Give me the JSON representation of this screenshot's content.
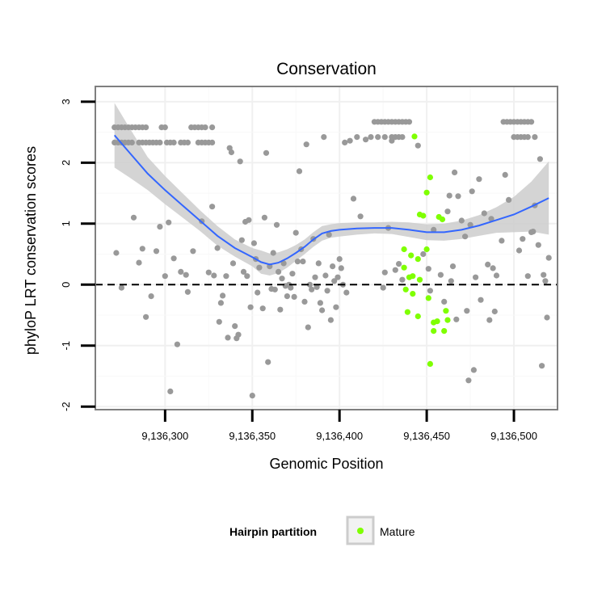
{
  "chart_data": {
    "type": "scatter",
    "title": "Conservation",
    "xlabel": "Genomic Position",
    "ylabel": "phyloP LRT conservation scores",
    "xlim": [
      9136260,
      9136525
    ],
    "ylim": [
      -2.05,
      3.25
    ],
    "x_ticks": [
      9136300,
      9136350,
      9136400,
      9136450,
      9136500
    ],
    "x_tick_labels": [
      "9,136,300",
      "9,136,350",
      "9,136,400",
      "9,136,450",
      "9,136,500"
    ],
    "y_ticks": [
      -2,
      -1,
      0,
      1,
      2,
      3
    ],
    "y_tick_labels": [
      "-2",
      "-1",
      "0",
      "1",
      "2",
      "3"
    ],
    "reference_line": {
      "y": 0,
      "style": "dashed"
    },
    "grid": true,
    "legend": {
      "title": "Hairpin partition",
      "position": "bottom",
      "entries": [
        {
          "label": "Mature",
          "color": "#7fff00"
        }
      ]
    },
    "colors": {
      "points_other": "#999999",
      "points_mature": "#7fff00",
      "smooth_line": "#3366ff",
      "confidence_band": "#cccccc",
      "panel_border": "#7f7f7f",
      "grid": "#f0f0f0"
    },
    "series": [
      {
        "name": "",
        "color": "#999999",
        "points": [
          [
            9136271,
            2.58
          ],
          [
            9136273,
            2.58
          ],
          [
            9136275,
            2.58
          ],
          [
            9136277,
            2.58
          ],
          [
            9136279,
            2.58
          ],
          [
            9136281,
            2.58
          ],
          [
            9136283,
            2.58
          ],
          [
            9136285,
            2.58
          ],
          [
            9136287,
            2.58
          ],
          [
            9136289,
            2.58
          ],
          [
            9136298,
            2.58
          ],
          [
            9136300,
            2.58
          ],
          [
            9136315,
            2.58
          ],
          [
            9136317,
            2.58
          ],
          [
            9136319,
            2.58
          ],
          [
            9136321,
            2.58
          ],
          [
            9136323,
            2.58
          ],
          [
            9136327,
            2.58
          ],
          [
            9136271,
            2.33
          ],
          [
            9136273,
            2.33
          ],
          [
            9136275,
            2.33
          ],
          [
            9136277,
            2.33
          ],
          [
            9136279,
            2.33
          ],
          [
            9136281,
            2.33
          ],
          [
            9136285,
            2.33
          ],
          [
            9136287,
            2.33
          ],
          [
            9136289,
            2.33
          ],
          [
            9136291,
            2.33
          ],
          [
            9136293,
            2.33
          ],
          [
            9136295,
            2.33
          ],
          [
            9136297,
            2.33
          ],
          [
            9136301,
            2.33
          ],
          [
            9136303,
            2.33
          ],
          [
            9136305,
            2.33
          ],
          [
            9136309,
            2.33
          ],
          [
            9136311,
            2.33
          ],
          [
            9136313,
            2.33
          ],
          [
            9136319,
            2.33
          ],
          [
            9136321,
            2.33
          ],
          [
            9136323,
            2.33
          ],
          [
            9136325,
            2.33
          ],
          [
            9136327,
            2.33
          ],
          [
            9136420,
            2.67
          ],
          [
            9136422,
            2.67
          ],
          [
            9136424,
            2.67
          ],
          [
            9136426,
            2.67
          ],
          [
            9136428,
            2.67
          ],
          [
            9136430,
            2.67
          ],
          [
            9136432,
            2.67
          ],
          [
            9136434,
            2.67
          ],
          [
            9136436,
            2.67
          ],
          [
            9136438,
            2.67
          ],
          [
            9136440,
            2.67
          ],
          [
            9136418,
            2.42
          ],
          [
            9136422,
            2.42
          ],
          [
            9136426,
            2.42
          ],
          [
            9136430,
            2.42
          ],
          [
            9136432,
            2.42
          ],
          [
            9136434,
            2.42
          ],
          [
            9136436,
            2.42
          ],
          [
            9136494,
            2.67
          ],
          [
            9136496,
            2.67
          ],
          [
            9136498,
            2.67
          ],
          [
            9136500,
            2.67
          ],
          [
            9136502,
            2.67
          ],
          [
            9136504,
            2.67
          ],
          [
            9136506,
            2.67
          ],
          [
            9136508,
            2.67
          ],
          [
            9136510,
            2.67
          ],
          [
            9136500,
            2.42
          ],
          [
            9136502,
            2.42
          ],
          [
            9136504,
            2.42
          ],
          [
            9136506,
            2.42
          ],
          [
            9136508,
            2.42
          ],
          [
            9136512,
            2.42
          ],
          [
            9136272,
            0.52
          ],
          [
            9136275,
            -0.05
          ],
          [
            9136282,
            1.1
          ],
          [
            9136285,
            0.36
          ],
          [
            9136287,
            0.59
          ],
          [
            9136289,
            -0.53
          ],
          [
            9136292,
            -0.19
          ],
          [
            9136295,
            0.55
          ],
          [
            9136297,
            0.95
          ],
          [
            9136300,
            0.14
          ],
          [
            9136302,
            1.02
          ],
          [
            9136303,
            -1.75
          ],
          [
            9136305,
            0.43
          ],
          [
            9136307,
            -0.98
          ],
          [
            9136309,
            0.21
          ],
          [
            9136312,
            0.16
          ],
          [
            9136313,
            -0.12
          ],
          [
            9136316,
            0.55
          ],
          [
            9136321,
            1.04
          ],
          [
            9136325,
            0.2
          ],
          [
            9136327,
            1.28
          ],
          [
            9136328,
            0.15
          ],
          [
            9136330,
            0.6
          ],
          [
            9136331,
            -0.61
          ],
          [
            9136332,
            -0.3
          ],
          [
            9136333,
            -0.18
          ],
          [
            9136335,
            0.14
          ],
          [
            9136336,
            -0.87
          ],
          [
            9136337,
            2.24
          ],
          [
            9136338,
            2.17
          ],
          [
            9136339,
            0.35
          ],
          [
            9136340,
            -0.68
          ],
          [
            9136341,
            -0.88
          ],
          [
            9136342,
            -0.82
          ],
          [
            9136343,
            2.02
          ],
          [
            9136344,
            0.73
          ],
          [
            9136345,
            0.21
          ],
          [
            9136346,
            1.03
          ],
          [
            9136347,
            0.14
          ],
          [
            9136348,
            1.06
          ],
          [
            9136349,
            -0.37
          ],
          [
            9136350,
            -1.82
          ],
          [
            9136351,
            0.68
          ],
          [
            9136352,
            0.42
          ],
          [
            9136353,
            -0.13
          ],
          [
            9136354,
            0.28
          ],
          [
            9136356,
            -0.39
          ],
          [
            9136357,
            1.1
          ],
          [
            9136358,
            2.16
          ],
          [
            9136359,
            -1.27
          ],
          [
            9136360,
            0.3
          ],
          [
            9136361,
            -0.07
          ],
          [
            9136362,
            0.52
          ],
          [
            9136363,
            -0.08
          ],
          [
            9136364,
            0.98
          ],
          [
            9136365,
            0.21
          ],
          [
            9136366,
            -0.41
          ],
          [
            9136367,
            0.1
          ],
          [
            9136368,
            0.35
          ],
          [
            9136369,
            -0.02
          ],
          [
            9136370,
            -0.19
          ],
          [
            9136371,
            0.0
          ],
          [
            9136372,
            -0.05
          ],
          [
            9136373,
            0.18
          ],
          [
            9136374,
            -0.2
          ],
          [
            9136375,
            0.85
          ],
          [
            9136376,
            0.38
          ],
          [
            9136377,
            1.86
          ],
          [
            9136378,
            0.58
          ],
          [
            9136379,
            0.38
          ],
          [
            9136380,
            -0.28
          ],
          [
            9136381,
            2.3
          ],
          [
            9136382,
            -0.7
          ],
          [
            9136383,
            0.0
          ],
          [
            9136384,
            -0.08
          ],
          [
            9136385,
            0.75
          ],
          [
            9136386,
            0.12
          ],
          [
            9136387,
            -0.04
          ],
          [
            9136388,
            0.35
          ],
          [
            9136389,
            -0.3
          ],
          [
            9136390,
            -0.42
          ],
          [
            9136391,
            2.42
          ],
          [
            9136392,
            0.15
          ],
          [
            9136393,
            -0.1
          ],
          [
            9136394,
            0.82
          ],
          [
            9136395,
            -0.58
          ],
          [
            9136396,
            0.3
          ],
          [
            9136397,
            0.06
          ],
          [
            9136398,
            -0.37
          ],
          [
            9136399,
            0.12
          ],
          [
            9136400,
            0.42
          ],
          [
            9136401,
            0.27
          ],
          [
            9136402,
            0.0
          ],
          [
            9136403,
            2.33
          ],
          [
            9136404,
            -0.13
          ],
          [
            9136406,
            2.36
          ],
          [
            9136408,
            1.41
          ],
          [
            9136410,
            2.42
          ],
          [
            9136412,
            1.12
          ],
          [
            9136415,
            2.38
          ],
          [
            9136425,
            -0.05
          ],
          [
            9136426,
            0.2
          ],
          [
            9136428,
            0.93
          ],
          [
            9136430,
            2.36
          ],
          [
            9136432,
            0.24
          ],
          [
            9136434,
            0.34
          ],
          [
            9136436,
            0.08
          ],
          [
            9136445,
            2.28
          ],
          [
            9136448,
            0.5
          ],
          [
            9136451,
            0.26
          ],
          [
            9136452,
            -0.1
          ],
          [
            9136454,
            0.9
          ],
          [
            9136458,
            0.16
          ],
          [
            9136460,
            -0.28
          ],
          [
            9136462,
            1.2
          ],
          [
            9136463,
            1.46
          ],
          [
            9136464,
            0.06
          ],
          [
            9136465,
            0.3
          ],
          [
            9136466,
            1.84
          ],
          [
            9136467,
            -0.57
          ],
          [
            9136468,
            1.45
          ],
          [
            9136470,
            1.05
          ],
          [
            9136472,
            0.79
          ],
          [
            9136473,
            -0.43
          ],
          [
            9136474,
            -1.57
          ],
          [
            9136475,
            0.98
          ],
          [
            9136476,
            1.53
          ],
          [
            9136477,
            -1.4
          ],
          [
            9136478,
            0.12
          ],
          [
            9136480,
            1.73
          ],
          [
            9136481,
            -0.25
          ],
          [
            9136483,
            1.17
          ],
          [
            9136485,
            0.33
          ],
          [
            9136486,
            -0.58
          ],
          [
            9136487,
            1.08
          ],
          [
            9136488,
            0.27
          ],
          [
            9136489,
            -0.44
          ],
          [
            9136490,
            0.15
          ],
          [
            9136493,
            0.72
          ],
          [
            9136495,
            1.8
          ],
          [
            9136497,
            1.39
          ],
          [
            9136503,
            0.56
          ],
          [
            9136505,
            0.75
          ],
          [
            9136508,
            0.14
          ],
          [
            9136510,
            0.86
          ],
          [
            9136512,
            1.3
          ],
          [
            9136514,
            0.65
          ],
          [
            9136515,
            2.06
          ],
          [
            9136516,
            -1.33
          ],
          [
            9136517,
            0.16
          ],
          [
            9136518,
            0.06
          ],
          [
            9136519,
            -0.54
          ],
          [
            9136520,
            0.44
          ],
          [
            9136511,
            0.87
          ]
        ]
      },
      {
        "name": "Mature",
        "color": "#7fff00",
        "points": [
          [
            9136443,
            2.43
          ],
          [
            9136452,
            1.76
          ],
          [
            9136450,
            1.51
          ],
          [
            9136446,
            1.15
          ],
          [
            9136448,
            1.13
          ],
          [
            9136457,
            1.11
          ],
          [
            9136459,
            1.07
          ],
          [
            9136437,
            0.58
          ],
          [
            9136441,
            0.48
          ],
          [
            9136445,
            0.42
          ],
          [
            9136450,
            0.58
          ],
          [
            9136437,
            0.28
          ],
          [
            9136440,
            0.12
          ],
          [
            9136442,
            0.14
          ],
          [
            9136446,
            0.08
          ],
          [
            9136438,
            -0.08
          ],
          [
            9136442,
            -0.15
          ],
          [
            9136451,
            -0.22
          ],
          [
            9136461,
            -0.43
          ],
          [
            9136439,
            -0.45
          ],
          [
            9136445,
            -0.52
          ],
          [
            9136462,
            -0.58
          ],
          [
            9136456,
            -0.6
          ],
          [
            9136454,
            -0.62
          ],
          [
            9136454,
            -0.76
          ],
          [
            9136460,
            -0.76
          ],
          [
            9136452,
            -1.3
          ]
        ]
      }
    ],
    "smooth": {
      "method": "loess",
      "color": "#3366ff",
      "x": [
        9136271,
        9136280,
        9136290,
        9136300,
        9136310,
        9136320,
        9136330,
        9136340,
        9136350,
        9136355,
        9136360,
        9136365,
        9136370,
        9136375,
        9136380,
        9136385,
        9136390,
        9136395,
        9136400,
        9136410,
        9136420,
        9136430,
        9136440,
        9136450,
        9136460,
        9136470,
        9136480,
        9136490,
        9136500,
        9136510,
        9136520
      ],
      "y": [
        2.45,
        2.15,
        1.82,
        1.55,
        1.3,
        1.05,
        0.8,
        0.6,
        0.45,
        0.37,
        0.33,
        0.36,
        0.43,
        0.52,
        0.62,
        0.74,
        0.84,
        0.88,
        0.9,
        0.92,
        0.93,
        0.93,
        0.9,
        0.86,
        0.86,
        0.9,
        0.97,
        1.06,
        1.15,
        1.28,
        1.42
      ],
      "lower": [
        1.92,
        1.75,
        1.55,
        1.32,
        1.1,
        0.88,
        0.64,
        0.46,
        0.3,
        0.18,
        0.15,
        0.19,
        0.28,
        0.39,
        0.5,
        0.62,
        0.72,
        0.77,
        0.79,
        0.82,
        0.84,
        0.83,
        0.78,
        0.73,
        0.72,
        0.75,
        0.8,
        0.85,
        0.86,
        0.87,
        0.82
      ],
      "upper": [
        2.98,
        2.55,
        2.09,
        1.78,
        1.5,
        1.22,
        0.96,
        0.74,
        0.6,
        0.56,
        0.51,
        0.53,
        0.58,
        0.65,
        0.74,
        0.86,
        0.96,
        0.99,
        1.01,
        1.02,
        1.02,
        1.03,
        1.02,
        0.99,
        1.0,
        1.05,
        1.14,
        1.27,
        1.44,
        1.69,
        2.02
      ]
    }
  }
}
